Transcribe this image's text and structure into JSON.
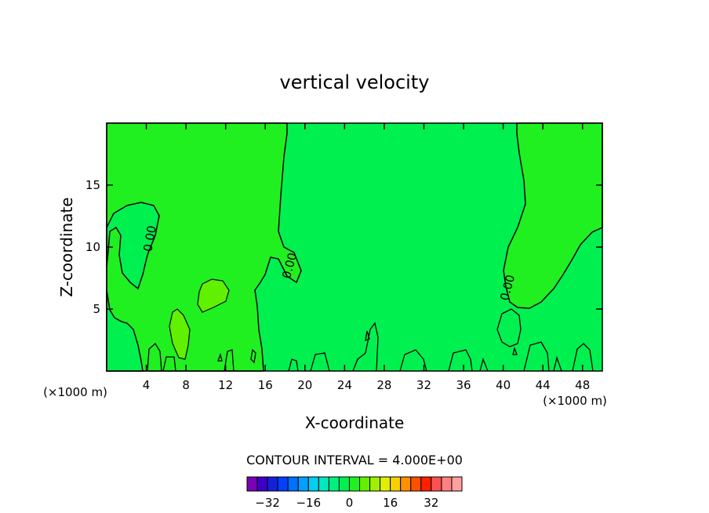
{
  "chart_data": {
    "type": "contour",
    "title": "vertical velocity",
    "xlabel": "X-coordinate",
    "ylabel": "Z-coordinate",
    "x_unit_label": "(×1000 m)",
    "x_unit_label_right": "(×1000 m)",
    "xlim": [
      0,
      50
    ],
    "ylim": [
      0,
      20
    ],
    "x_ticks": [
      4,
      8,
      12,
      16,
      20,
      24,
      28,
      32,
      36,
      40,
      44,
      48
    ],
    "y_ticks": [
      5,
      10,
      15
    ],
    "contour_labels": [
      "0.00",
      "0.00",
      "0.00"
    ],
    "contour_interval_text": "CONTOUR INTERVAL = 4.000E+00",
    "colorbar": {
      "colors": [
        "#7a00b4",
        "#3a00c8",
        "#1420d8",
        "#0040ff",
        "#0070ff",
        "#00a0ff",
        "#00d0f0",
        "#00e8c0",
        "#00f080",
        "#00f050",
        "#20f020",
        "#60f000",
        "#a0f000",
        "#e0f000",
        "#f8d000",
        "#ff9000",
        "#ff5000",
        "#ff2000",
        "#ff5050",
        "#ff8080",
        "#ffa0a0"
      ],
      "tick_labels": [
        "−32",
        "−16",
        "0",
        "16",
        "32"
      ],
      "tick_values": [
        -32,
        -16,
        0,
        16,
        32
      ],
      "vmin": -40,
      "vmax": 44
    },
    "field_colors": {
      "background": "#00f050",
      "slightly_positive": "#20f020",
      "positive": "#60f000"
    }
  }
}
